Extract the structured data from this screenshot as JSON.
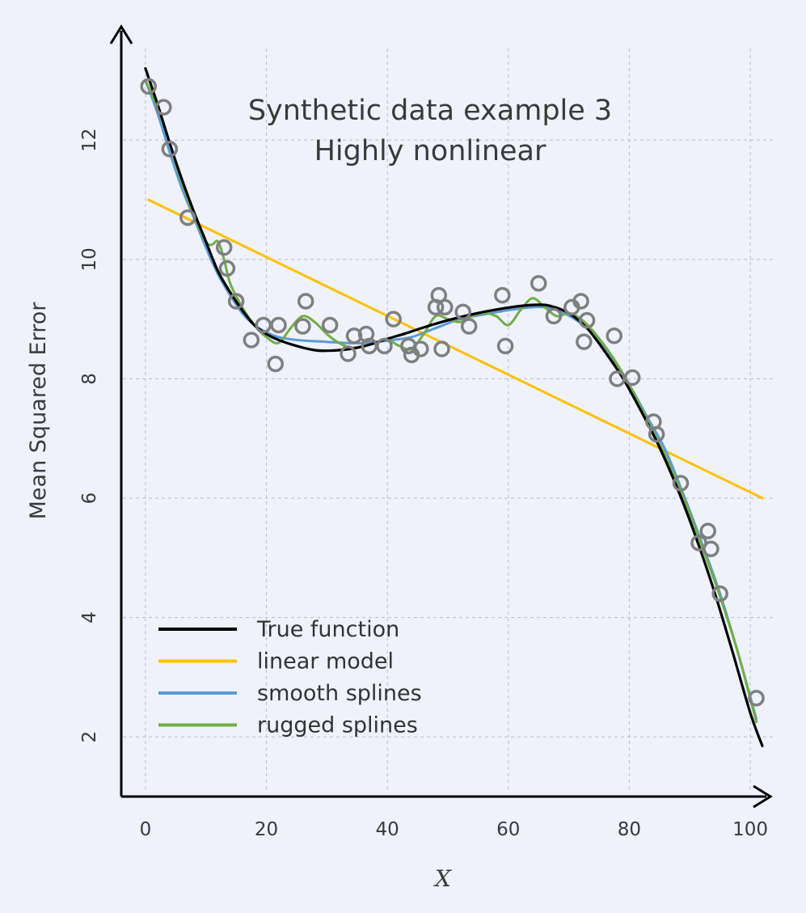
{
  "chart_data": {
    "type": "line",
    "title": [
      "Synthetic data example 3",
      "Highly nonlinear"
    ],
    "xlabel": "X",
    "ylabel": "Mean Squared Error",
    "xlim": [
      -4,
      104
    ],
    "ylim": [
      1.0,
      13.9
    ],
    "xticks": [
      0,
      20,
      40,
      60,
      80,
      100
    ],
    "yticks": [
      2,
      4,
      6,
      8,
      10,
      12
    ],
    "grid": true,
    "legend_position": "bottom-left",
    "colors": {
      "true_function": "#000000",
      "linear_model": "#ffc000",
      "smooth_splines": "#5b9bd5",
      "rugged_splines": "#70ad47",
      "points": "#7f7f7f",
      "background": "#eff2fb"
    },
    "series": [
      {
        "name": "True function",
        "color": "#000000",
        "x": [
          0,
          2,
          4,
          6,
          8,
          10,
          12,
          14,
          16,
          18,
          20,
          22,
          25,
          28,
          30,
          32,
          35,
          38,
          40,
          43,
          46,
          50,
          54,
          58,
          62,
          65,
          67,
          70,
          73,
          76,
          79,
          82,
          85,
          88,
          91,
          94,
          97,
          100,
          102
        ],
        "y": [
          13.2,
          12.6,
          11.95,
          11.35,
          10.8,
          10.3,
          9.8,
          9.45,
          9.15,
          8.9,
          8.75,
          8.65,
          8.55,
          8.48,
          8.47,
          8.48,
          8.52,
          8.6,
          8.67,
          8.76,
          8.86,
          8.98,
          9.08,
          9.16,
          9.22,
          9.24,
          9.22,
          9.1,
          8.85,
          8.45,
          8.0,
          7.45,
          6.85,
          6.15,
          5.35,
          4.45,
          3.45,
          2.4,
          1.85
        ]
      },
      {
        "name": "linear model",
        "color": "#ffc000",
        "x": [
          0.5,
          102
        ],
        "y": [
          11.0,
          6.0
        ]
      },
      {
        "name": "smooth splines",
        "color": "#5b9bd5",
        "x": [
          0,
          2,
          4,
          6,
          8,
          10,
          12,
          14,
          16,
          18,
          20,
          22,
          25,
          28,
          30,
          33,
          36,
          40,
          44,
          48,
          52,
          56,
          60,
          64,
          66,
          68,
          71,
          74,
          77,
          80,
          83,
          86,
          89,
          92,
          95,
          98,
          101
        ],
        "y": [
          13.0,
          12.45,
          11.8,
          11.2,
          10.7,
          10.2,
          9.75,
          9.4,
          9.1,
          8.9,
          8.78,
          8.7,
          8.65,
          8.63,
          8.62,
          8.6,
          8.6,
          8.64,
          8.7,
          8.85,
          9.0,
          9.08,
          9.15,
          9.2,
          9.2,
          9.15,
          9.0,
          8.75,
          8.35,
          7.9,
          7.35,
          6.8,
          6.05,
          5.25,
          4.4,
          3.4,
          2.3
        ]
      },
      {
        "name": "rugged splines",
        "color": "#70ad47",
        "x": [
          0,
          2,
          4,
          6,
          8,
          10,
          11,
          12,
          13,
          14,
          16,
          18,
          20,
          22,
          24,
          26,
          28,
          30,
          32,
          34,
          36,
          38,
          40,
          42,
          44,
          46,
          48,
          50,
          52,
          54,
          56,
          58,
          60,
          62,
          64,
          66,
          68,
          70,
          72,
          74,
          77,
          80,
          83,
          86,
          89,
          92,
          95,
          98,
          101
        ],
        "y": [
          13.0,
          12.55,
          11.95,
          11.3,
          10.75,
          10.3,
          10.25,
          10.3,
          10.0,
          9.6,
          9.2,
          8.9,
          8.7,
          8.6,
          8.85,
          9.05,
          8.95,
          8.75,
          8.6,
          8.52,
          8.55,
          8.6,
          8.65,
          8.55,
          8.5,
          8.75,
          9.05,
          9.0,
          8.95,
          9.05,
          9.1,
          9.05,
          8.9,
          9.15,
          9.35,
          9.2,
          9.05,
          9.1,
          9.0,
          8.8,
          8.4,
          7.9,
          7.3,
          6.7,
          6.0,
          5.2,
          4.35,
          3.4,
          2.25
        ]
      }
    ],
    "scatter": {
      "name": "data points",
      "color": "#7f7f7f",
      "points": [
        [
          0.5,
          12.9
        ],
        [
          3,
          12.55
        ],
        [
          4,
          11.85
        ],
        [
          7,
          10.7
        ],
        [
          13,
          10.2
        ],
        [
          13.5,
          9.85
        ],
        [
          15,
          9.3
        ],
        [
          17.5,
          8.65
        ],
        [
          19.5,
          8.9
        ],
        [
          21.5,
          8.25
        ],
        [
          22,
          8.9
        ],
        [
          26,
          8.88
        ],
        [
          26.5,
          9.3
        ],
        [
          30.5,
          8.9
        ],
        [
          33.5,
          8.42
        ],
        [
          34.5,
          8.72
        ],
        [
          36.5,
          8.75
        ],
        [
          37,
          8.55
        ],
        [
          39.5,
          8.55
        ],
        [
          41,
          9.0
        ],
        [
          43.5,
          8.55
        ],
        [
          44,
          8.4
        ],
        [
          45.5,
          8.5
        ],
        [
          48,
          9.2
        ],
        [
          48.5,
          9.4
        ],
        [
          49,
          8.5
        ],
        [
          49.5,
          9.2
        ],
        [
          52.5,
          9.12
        ],
        [
          53.5,
          8.88
        ],
        [
          59,
          9.4
        ],
        [
          59.5,
          8.55
        ],
        [
          65,
          9.6
        ],
        [
          67.5,
          9.05
        ],
        [
          70.5,
          9.2
        ],
        [
          72,
          9.3
        ],
        [
          72.5,
          8.62
        ],
        [
          73,
          8.98
        ],
        [
          77.5,
          8.72
        ],
        [
          78,
          8.0
        ],
        [
          80.5,
          8.02
        ],
        [
          84,
          7.28
        ],
        [
          84.5,
          7.07
        ],
        [
          88.5,
          6.25
        ],
        [
          91.5,
          5.25
        ],
        [
          93,
          5.45
        ],
        [
          93.5,
          5.15
        ],
        [
          95,
          4.4
        ],
        [
          101,
          2.65
        ]
      ]
    },
    "legend": [
      "True function",
      "linear model",
      "smooth splines",
      "rugged splines"
    ]
  }
}
